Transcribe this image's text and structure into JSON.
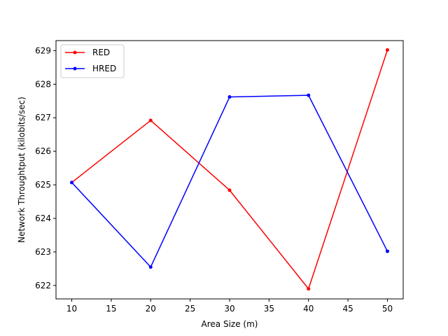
{
  "chart_data": {
    "type": "line",
    "title": "",
    "xlabel": "Area Size (m)",
    "ylabel": "Network Throughtput (kilobits/sec)",
    "xlim": [
      8,
      52
    ],
    "ylim": [
      621.6,
      629.3
    ],
    "xticks": [
      10,
      15,
      20,
      25,
      30,
      35,
      40,
      45,
      50
    ],
    "yticks": [
      622,
      623,
      624,
      625,
      626,
      627,
      628,
      629
    ],
    "x": [
      10,
      20,
      30,
      40,
      50
    ],
    "series": [
      {
        "name": "RED",
        "color": "#ff0000",
        "values": [
          625.07,
          626.92,
          624.84,
          621.9,
          629.02
        ]
      },
      {
        "name": "HRED",
        "color": "#0000ff",
        "values": [
          625.07,
          622.55,
          627.62,
          627.67,
          623.02
        ]
      }
    ],
    "grid": false,
    "legend": "upper-left",
    "marker": "circle"
  }
}
